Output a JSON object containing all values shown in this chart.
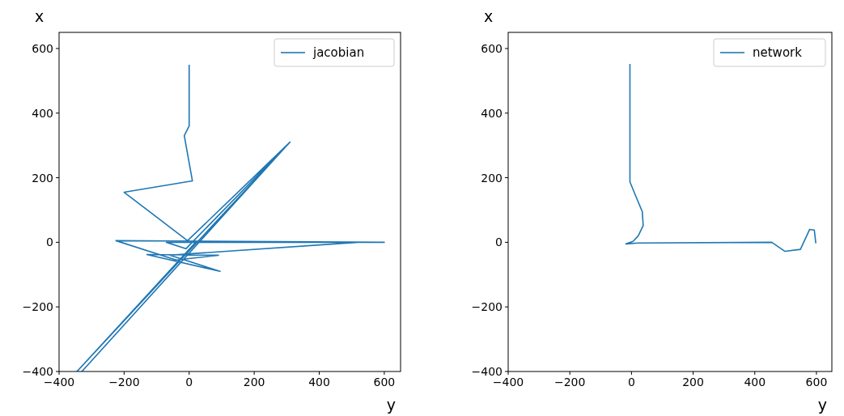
{
  "chart_data": [
    {
      "type": "line",
      "xlabel": "y",
      "ylabel": "x",
      "xlim": [
        -400,
        650
      ],
      "ylim": [
        -400,
        650
      ],
      "xticks": [
        -400,
        -200,
        0,
        200,
        400,
        600
      ],
      "yticks": [
        -400,
        -200,
        0,
        200,
        400,
        600
      ],
      "legend": "top right",
      "grid": false,
      "series": [
        {
          "name": "jacobian",
          "color": "#1f77b4",
          "x": [
            0,
            0,
            -15,
            10,
            -200,
            -5,
            310,
            -345,
            20,
            600,
            -225,
            -40,
            90,
            -130,
            95,
            -60,
            520,
            -70,
            -10,
            305,
            -330
          ],
          "values": [
            550,
            360,
            330,
            190,
            155,
            5,
            310,
            -400,
            0,
            0,
            5,
            -55,
            -40,
            -38,
            -90,
            -40,
            0,
            0,
            -20,
            305,
            -400
          ]
        }
      ]
    },
    {
      "type": "line",
      "xlabel": "y",
      "ylabel": "x",
      "xlim": [
        -400,
        650
      ],
      "ylim": [
        -400,
        650
      ],
      "xticks": [
        -400,
        -200,
        0,
        200,
        400,
        600
      ],
      "yticks": [
        -400,
        -200,
        0,
        200,
        400,
        600
      ],
      "legend": "top right",
      "grid": false,
      "series": [
        {
          "name": "network",
          "color": "#1f77b4",
          "x": [
            -5,
            -5,
            -5,
            13,
            35,
            38,
            22,
            5,
            -18,
            22,
            455,
            498,
            548,
            578,
            593,
            598
          ],
          "values": [
            552,
            400,
            187,
            145,
            95,
            52,
            20,
            3,
            -5,
            -2,
            0,
            -28,
            -22,
            40,
            38,
            -3
          ]
        }
      ]
    }
  ]
}
